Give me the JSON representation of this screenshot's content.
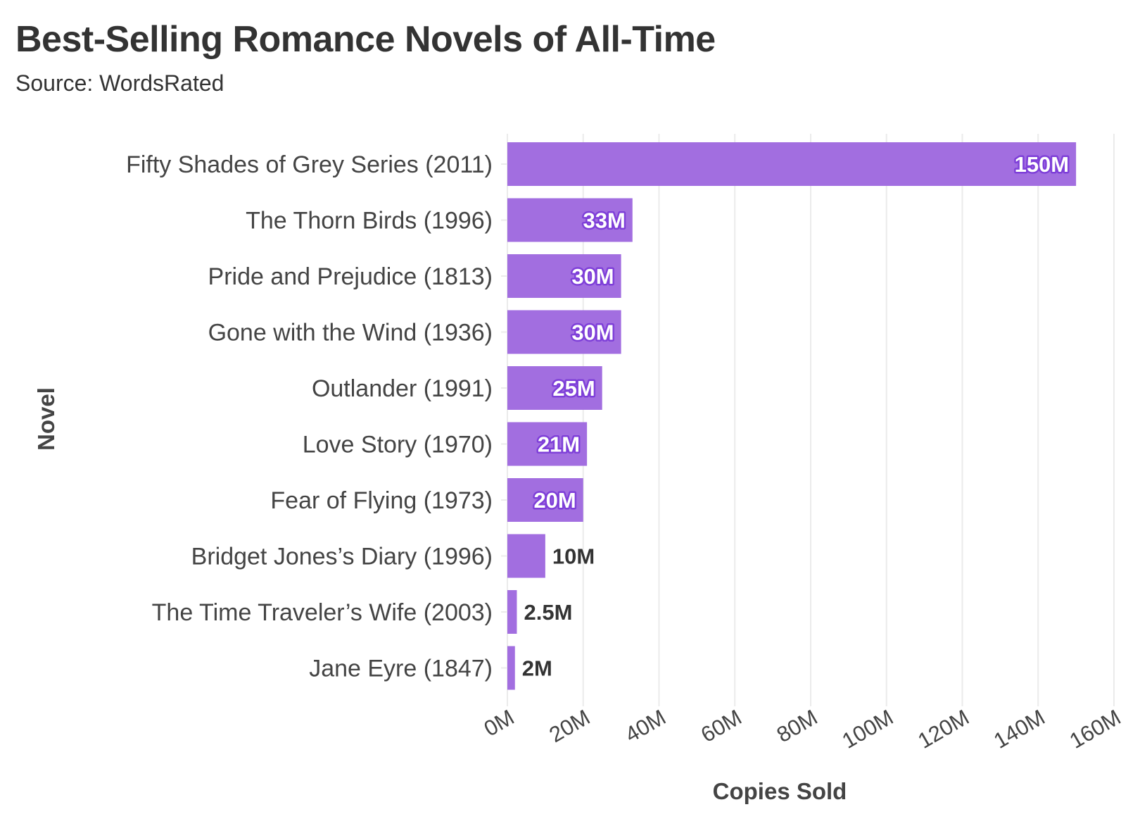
{
  "chart_data": {
    "type": "bar",
    "orientation": "horizontal",
    "title": "Best-Selling Romance Novels of All-Time",
    "subtitle": "Source: WordsRated",
    "xlabel": "Copies Sold",
    "ylabel": "Novel",
    "xlim": [
      0,
      160
    ],
    "x_ticks": [
      {
        "value": 0,
        "label": "0M"
      },
      {
        "value": 20,
        "label": "20M"
      },
      {
        "value": 40,
        "label": "40M"
      },
      {
        "value": 60,
        "label": "60M"
      },
      {
        "value": 80,
        "label": "80M"
      },
      {
        "value": 100,
        "label": "100M"
      },
      {
        "value": 120,
        "label": "120M"
      },
      {
        "value": 140,
        "label": "140M"
      },
      {
        "value": 160,
        "label": "160M"
      }
    ],
    "bar_color": "#a26ee0",
    "label_outline_color": "#7e3fd8",
    "grid": true,
    "categories": [
      "Fifty Shades of Grey Series (2011)",
      "The Thorn Birds (1996)",
      "Pride and Prejudice (1813)",
      "Gone with the Wind (1936)",
      "Outlander (1991)",
      "Love Story (1970)",
      "Fear of Flying (1973)",
      "Bridget Jones’s Diary (1996)",
      "The Time Traveler’s Wife (2003)",
      "Jane Eyre (1847)"
    ],
    "values": [
      150,
      33,
      30,
      30,
      25,
      21,
      20,
      10,
      2.5,
      2
    ],
    "value_labels": [
      "150M",
      "33M",
      "30M",
      "30M",
      "25M",
      "21M",
      "20M",
      "10M",
      "2.5M",
      "2M"
    ]
  }
}
